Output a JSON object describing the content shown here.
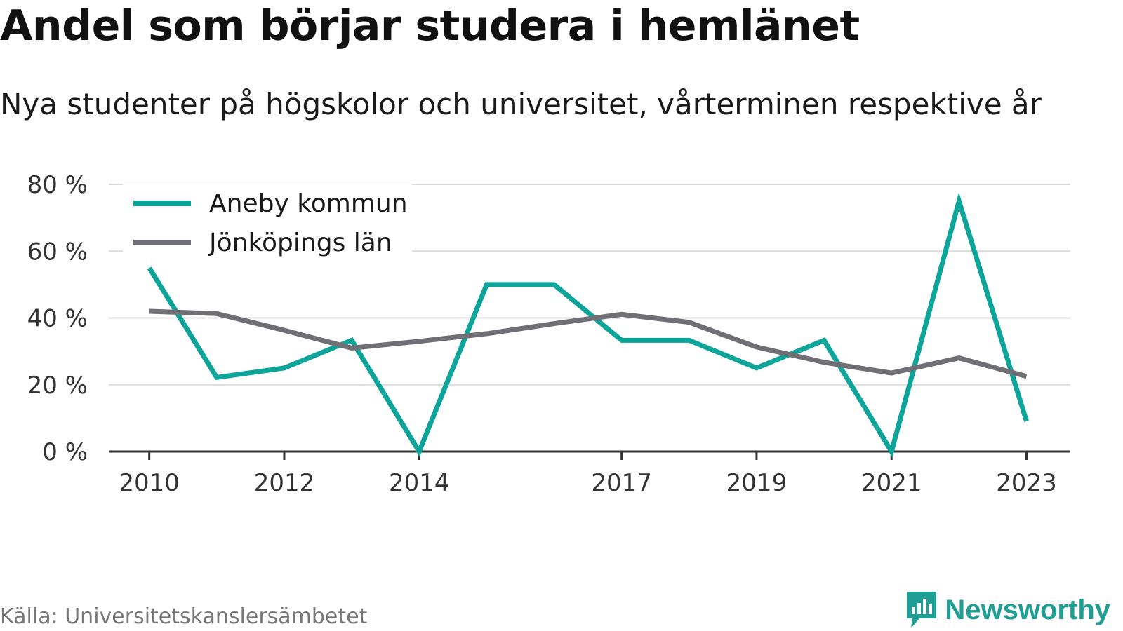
{
  "title": "Andel som börjar studera i hemlänet",
  "subtitle": "Nya studenter på högskolor och universitet, vårterminen respektive år",
  "source": "Källa: Universitetskanslersämbetet",
  "brand": "Newsworthy",
  "colors": {
    "aneby": "#0da49a",
    "jonkoping": "#706f75",
    "grid": "#dcdcdc",
    "axis": "#333333",
    "brand": "#1f9e93"
  },
  "chart_data": {
    "type": "line",
    "x": [
      2010,
      2011,
      2012,
      2013,
      2014,
      2015,
      2016,
      2017,
      2018,
      2019,
      2020,
      2021,
      2022,
      2023
    ],
    "x_tick_labels": [
      "2010",
      "2012",
      "2014",
      "2017",
      "2019",
      "2021",
      "2023"
    ],
    "x_tick_values": [
      2010,
      2012,
      2014,
      2017,
      2019,
      2021,
      2023
    ],
    "y_tick_labels": [
      "0 %",
      "20 %",
      "40 %",
      "60 %",
      "80 %"
    ],
    "y_tick_values": [
      0,
      20,
      40,
      60,
      80
    ],
    "ylim": [
      0,
      80
    ],
    "xlim": [
      2009.4,
      2023.65
    ],
    "grid": true,
    "legend_position": "top-left",
    "series": [
      {
        "name": "Aneby kommun",
        "color": "#0da49a",
        "values": [
          55,
          22.2,
          25,
          33.3,
          0,
          50,
          50,
          33.3,
          33.3,
          25,
          33.3,
          0,
          75,
          9.1
        ]
      },
      {
        "name": "Jönköpings län",
        "color": "#706f75",
        "values": [
          42,
          41.3,
          36.3,
          31,
          33,
          35.3,
          38.3,
          41.1,
          38.7,
          31.3,
          26.7,
          23.5,
          28,
          22.5
        ]
      }
    ]
  }
}
